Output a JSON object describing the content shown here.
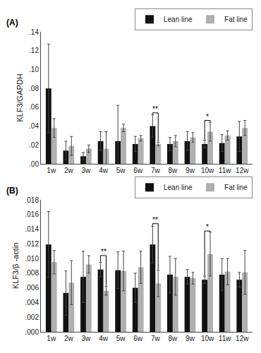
{
  "chart_data": [
    {
      "type": "bar",
      "title": "(A)",
      "ylabel": "KLF3/GAPDH",
      "categories": [
        "1w",
        "2w",
        "3w",
        "4w",
        "5w",
        "6w",
        "7w",
        "8w",
        "9w",
        "10w",
        "11w",
        "12w"
      ],
      "series": [
        {
          "name": "Lean line",
          "color": "#111111",
          "values": [
            0.08,
            0.014,
            0.008,
            0.024,
            0.024,
            0.021,
            0.04,
            0.021,
            0.024,
            0.021,
            0.022,
            0.029
          ],
          "errors": [
            0.047,
            0.01,
            0.004,
            0.01,
            0.038,
            0.008,
            0.012,
            0.007,
            0.01,
            0.004,
            0.009,
            0.016
          ]
        },
        {
          "name": "Fat line",
          "color": "#b0b0b0",
          "values": [
            0.038,
            0.019,
            0.016,
            0.016,
            0.038,
            0.027,
            0.021,
            0.024,
            0.028,
            0.034,
            0.03,
            0.038
          ],
          "errors": [
            0.01,
            0.01,
            0.004,
            0.018,
            0.004,
            0.003,
            0.002,
            0.006,
            0.005,
            0.01,
            0.005,
            0.008
          ]
        }
      ],
      "ylim": [
        0,
        0.14
      ],
      "yticks": [
        {
          "value": 0.0,
          "label": ".00"
        },
        {
          "value": 0.02,
          "label": ".02"
        },
        {
          "value": 0.04,
          "label": ".04"
        },
        {
          "value": 0.06,
          "label": ".06"
        },
        {
          "value": 0.08,
          "label": ".08"
        },
        {
          "value": 0.1,
          "label": ".10"
        },
        {
          "value": 0.12,
          "label": ".12"
        },
        {
          "value": 0.14,
          "label": ".14"
        }
      ],
      "annotations": [
        {
          "category": "7w",
          "text": "**",
          "y": 0.054
        },
        {
          "category": "10w",
          "text": "*",
          "y": 0.046
        }
      ],
      "legend": "upper right",
      "grid": false
    },
    {
      "type": "bar",
      "title": "(B)",
      "ylabel": "KLF3/β -actin",
      "categories": [
        "1w",
        "2w",
        "3w",
        "4w",
        "5w",
        "6w",
        "7w",
        "8w",
        "9w",
        "10w",
        "11w",
        "12w"
      ],
      "series": [
        {
          "name": "Lean line",
          "color": "#111111",
          "values": [
            0.0119,
            0.0053,
            0.0075,
            0.0085,
            0.0084,
            0.006,
            0.0119,
            0.0078,
            0.0075,
            0.0071,
            0.0078,
            0.0071
          ],
          "errors": [
            0.0045,
            0.003,
            0.0035,
            0.001,
            0.0025,
            0.002,
            0.0025,
            0.0025,
            0.001,
            0.0005,
            0.0022,
            0.001
          ]
        },
        {
          "name": "Fat line",
          "color": "#b0b0b0",
          "values": [
            0.0095,
            0.0067,
            0.0092,
            0.0056,
            0.0083,
            0.0088,
            0.0066,
            0.0075,
            0.0073,
            0.0106,
            0.0082,
            0.0081
          ],
          "errors": [
            0.0016,
            0.003,
            0.0012,
            0.0006,
            0.0027,
            0.0022,
            0.0018,
            0.0025,
            0.0008,
            0.003,
            0.0018,
            0.003
          ]
        }
      ],
      "ylim": [
        0,
        0.018
      ],
      "yticks": [
        {
          "value": 0.0,
          "label": ".000"
        },
        {
          "value": 0.002,
          "label": ".002"
        },
        {
          "value": 0.004,
          "label": ".004"
        },
        {
          "value": 0.006,
          "label": ".006"
        },
        {
          "value": 0.008,
          "label": ".008"
        },
        {
          "value": 0.01,
          "label": ".010"
        },
        {
          "value": 0.012,
          "label": ".012"
        },
        {
          "value": 0.014,
          "label": ".014"
        },
        {
          "value": 0.016,
          "label": ".016"
        },
        {
          "value": 0.018,
          "label": ".018"
        }
      ],
      "annotations": [
        {
          "category": "4w",
          "text": "**",
          "y": 0.0104
        },
        {
          "category": "7w",
          "text": "**",
          "y": 0.01475
        },
        {
          "category": "10w",
          "text": "*",
          "y": 0.01375
        }
      ],
      "legend": "upper right",
      "grid": false
    }
  ]
}
